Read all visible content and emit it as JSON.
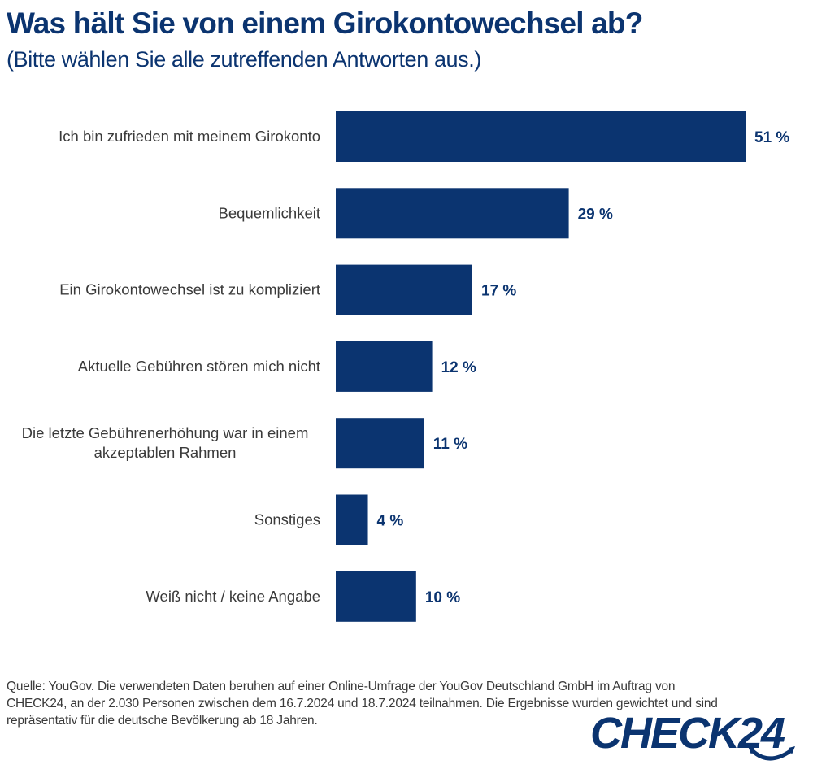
{
  "header": {
    "title": "Was hält Sie von einem Girokontowechsel ab?",
    "subtitle": "(Bitte wählen Sie alle zutreffenden Antworten aus.)"
  },
  "chart_data": {
    "type": "bar",
    "orientation": "horizontal",
    "title": "Was hält Sie von einem Girokontowechsel ab?",
    "subtitle": "(Bitte wählen Sie alle zutreffenden Antworten aus.)",
    "xlabel": "",
    "ylabel": "",
    "xlim": [
      0,
      51
    ],
    "grid": false,
    "unit": "%",
    "bar_color": "#0b3470",
    "categories": [
      [
        "Ich bin zufrieden mit meinem Girokonto"
      ],
      [
        "Bequemlichkeit"
      ],
      [
        "Ein Girokontowechsel ist zu kompliziert"
      ],
      [
        "Aktuelle Gebühren stören mich nicht"
      ],
      [
        "Die letzte Gebührenerhöhung war in einem",
        "akzeptablen Rahmen"
      ],
      [
        "Sonstiges"
      ],
      [
        "Weiß nicht / keine Angabe"
      ]
    ],
    "values": [
      51,
      29,
      17,
      12,
      11,
      4,
      10
    ],
    "value_labels": [
      "51 %",
      "29 %",
      "17 %",
      "12 %",
      "11 %",
      "4 %",
      "10 %"
    ]
  },
  "footer": {
    "source_lines": [
      "Quelle: YouGov. Die verwendeten Daten beruhen auf einer Online-Umfrage der YouGov Deutschland GmbH im Auftrag von",
      "CHECK24, an der 2.030 Personen zwischen dem 16.7.2024 und 18.7.2024 teilnahmen. Die Ergebnisse wurden gewichtet und sind",
      "repräsentativ für die deutsche Bevölkerung ab 18 Jahren."
    ],
    "logo_text": "CHECK24",
    "brand_color": "#0b3470"
  }
}
